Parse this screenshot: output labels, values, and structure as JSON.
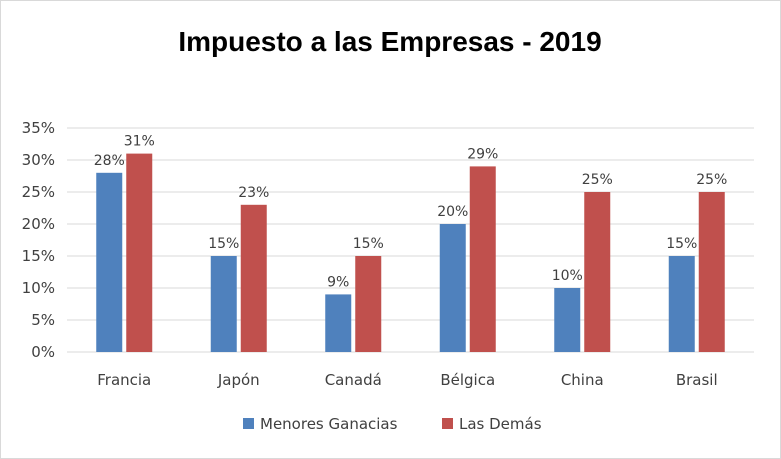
{
  "chart_data": {
    "type": "bar",
    "title": "Impuesto a las Empresas - 2019",
    "categories": [
      "Francia",
      "Japón",
      "Canadá",
      "Bélgica",
      "China",
      "Brasil"
    ],
    "series": [
      {
        "name": "Menores Ganacias",
        "color": "#4f81bd",
        "values": [
          28,
          15,
          9,
          20,
          10,
          15
        ]
      },
      {
        "name": "Las Demás",
        "color": "#c0504d",
        "values": [
          31,
          23,
          15,
          29,
          25,
          25
        ]
      }
    ],
    "ylim": [
      0,
      35
    ],
    "yticks": [
      0,
      5,
      10,
      15,
      20,
      25,
      30,
      35
    ],
    "value_suffix": "%",
    "grid": true,
    "legend_position": "bottom",
    "xlabel": "",
    "ylabel": ""
  }
}
